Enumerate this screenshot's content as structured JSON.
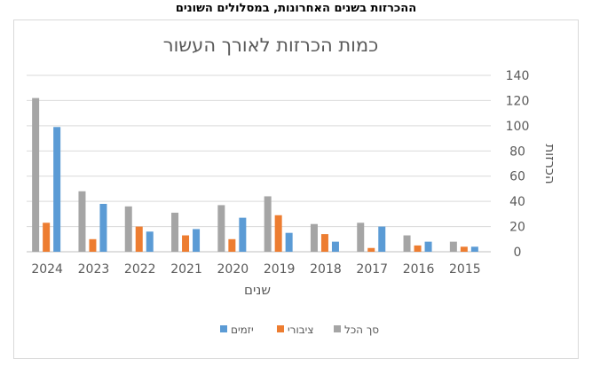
{
  "caption": "ההכרזות בשנים האחרונות, במסלולים השונים",
  "chart_data": {
    "type": "bar",
    "title": "כמות הכרזות לאורך העשור",
    "xlabel": "שנים",
    "ylabel": "הכרזות",
    "ylim": [
      0,
      140
    ],
    "yticks": [
      0,
      20,
      40,
      60,
      80,
      100,
      120,
      140
    ],
    "categories": [
      "2024",
      "2023",
      "2022",
      "2021",
      "2020",
      "2019",
      "2018",
      "2017",
      "2016",
      "2015"
    ],
    "series": [
      {
        "name": "סך הכל",
        "color": "#a5a5a5",
        "values": [
          122,
          48,
          36,
          31,
          37,
          44,
          22,
          23,
          13,
          8
        ]
      },
      {
        "name": "ציבורי",
        "color": "#ed7d31",
        "values": [
          23,
          10,
          20,
          13,
          10,
          29,
          14,
          3,
          5,
          4
        ]
      },
      {
        "name": "יזמים",
        "color": "#5b9bd5",
        "values": [
          99,
          38,
          16,
          18,
          27,
          15,
          8,
          20,
          8,
          4
        ]
      }
    ],
    "legend_order": [
      2,
      1,
      0
    ],
    "legend_position": "bottom",
    "grid": true,
    "y_axis_side": "right"
  }
}
